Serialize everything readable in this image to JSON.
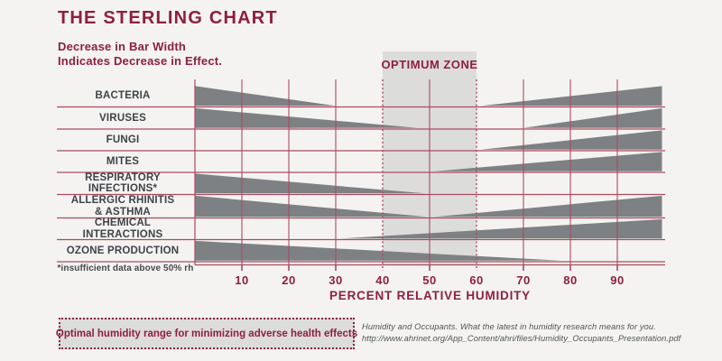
{
  "header": {
    "title": "THE STERLING CHART",
    "subtitle_line1": "Decrease in Bar Width",
    "subtitle_line2": "Indicates Decrease in Effect."
  },
  "chart_data": {
    "type": "area",
    "title": "THE STERLING CHART",
    "xlabel": "PERCENT RELATIVE HUMIDITY",
    "xlim": [
      0,
      100
    ],
    "x_ticks": [
      10,
      20,
      30,
      40,
      50,
      60,
      70,
      80,
      90
    ],
    "grid": "on",
    "optimum_zone": {
      "label": "OPTIMUM ZONE",
      "from": 40,
      "to": 60
    },
    "rows": [
      {
        "label": "BACTERIA",
        "wedges": [
          {
            "shape": "decrease",
            "from": 0,
            "to": 30
          },
          {
            "shape": "increase",
            "from": 61,
            "to": 100
          }
        ]
      },
      {
        "label": "VIRUSES",
        "wedges": [
          {
            "shape": "decrease",
            "from": 0,
            "to": 47.5
          },
          {
            "shape": "increase",
            "from": 70,
            "to": 100
          }
        ]
      },
      {
        "label": "FUNGI",
        "wedges": [
          {
            "shape": "increase",
            "from": 61,
            "to": 100
          }
        ]
      },
      {
        "label": "MITES",
        "wedges": [
          {
            "shape": "increase",
            "from": 51,
            "to": 100
          }
        ]
      },
      {
        "label": "RESPIRATORY INFECTIONS*",
        "wedges": [
          {
            "shape": "decrease",
            "from": 0,
            "to": 49
          }
        ]
      },
      {
        "label": "ALLERGIC RHINITIS",
        "label2": "& ASTHMA",
        "wedges": [
          {
            "shape": "decrease",
            "from": 0,
            "to": 49.5
          },
          {
            "shape": "increase",
            "from": 51,
            "to": 100
          }
        ]
      },
      {
        "label": "CHEMICAL INTERACTIONS",
        "wedges": [
          {
            "shape": "increase",
            "from": 31,
            "to": 100
          }
        ]
      },
      {
        "label": "OZONE PRODUCTION",
        "wedges": [
          {
            "shape": "decrease",
            "from": 0,
            "to": 78
          }
        ]
      }
    ],
    "footnote": "*insufficient data above 50% rh"
  },
  "legend": {
    "label": "Optimal humidity range for minimizing adverse health effects"
  },
  "citation": {
    "line1": "Humidity and Occupants. What the latest in humidity research means for you.",
    "line2": "http://www.ahrinet.org/App_Content/ahri/files/Humidity_Occupants_Presentation.pdf"
  },
  "colors": {
    "background": "#f4f3f1",
    "accent_red": "#8e1f3e",
    "grid_red": "#ab4b60",
    "wedge_gray": "#7e8183",
    "zone_gray": "#dcdcdb",
    "label_gray": "#3e4347"
  }
}
